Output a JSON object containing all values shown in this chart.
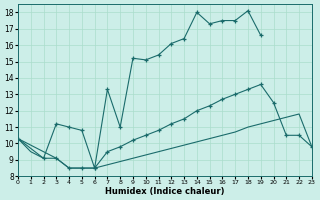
{
  "bg_color": "#cceee8",
  "grid_color": "#aaddcc",
  "line_color": "#1a6b6b",
  "xlabel": "Humidex (Indice chaleur)",
  "xlim": [
    0,
    23
  ],
  "ylim": [
    8,
    18.5
  ],
  "xticks": [
    0,
    1,
    2,
    3,
    4,
    5,
    6,
    7,
    8,
    9,
    10,
    11,
    12,
    13,
    14,
    15,
    16,
    17,
    18,
    19,
    20,
    21,
    22,
    23
  ],
  "yticks": [
    8,
    9,
    10,
    11,
    12,
    13,
    14,
    15,
    16,
    17,
    18
  ],
  "curve_bottom_x": [
    0,
    1,
    2,
    3,
    4,
    5,
    6,
    7,
    8,
    9,
    10,
    11,
    12,
    13,
    14,
    15,
    16,
    17,
    18,
    19,
    20,
    21,
    22,
    23
  ],
  "curve_bottom_y": [
    10.3,
    9.5,
    9.1,
    9.1,
    8.5,
    8.5,
    8.5,
    8.7,
    8.9,
    9.1,
    9.3,
    9.5,
    9.7,
    9.9,
    10.1,
    10.3,
    10.5,
    10.7,
    11.0,
    11.2,
    11.4,
    11.6,
    11.8,
    9.8
  ],
  "curve_top_x": [
    0,
    2,
    3,
    4,
    5,
    6,
    7,
    8,
    9,
    10,
    11,
    12,
    13,
    14,
    15,
    16,
    17,
    18,
    19
  ],
  "curve_top_y": [
    10.3,
    9.1,
    11.2,
    11.0,
    10.8,
    8.5,
    13.3,
    11.0,
    15.2,
    15.1,
    15.4,
    16.1,
    16.4,
    18.0,
    17.3,
    17.5,
    17.5,
    18.1,
    16.6
  ],
  "curve_mid_x": [
    0,
    3,
    4,
    5,
    6,
    7,
    8,
    9,
    10,
    11,
    12,
    13,
    14,
    15,
    16,
    17,
    18,
    19,
    20,
    21,
    22,
    23
  ],
  "curve_mid_y": [
    10.3,
    9.1,
    8.5,
    8.5,
    8.5,
    9.5,
    9.8,
    10.2,
    10.5,
    10.8,
    11.2,
    11.5,
    12.0,
    12.3,
    12.7,
    13.0,
    13.3,
    13.6,
    12.5,
    10.5,
    10.5,
    9.8
  ]
}
